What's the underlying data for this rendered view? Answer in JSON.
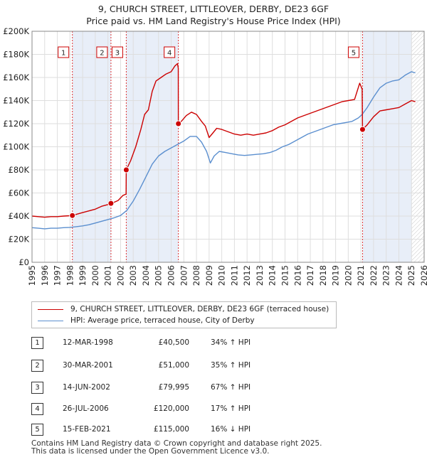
{
  "title_line1": "9, CHURCH STREET, LITTLEOVER, DERBY, DE23 6GF",
  "title_line2": "Price paid vs. HM Land Registry's House Price Index (HPI)",
  "chart_data": {
    "type": "line",
    "x_range": [
      1995,
      2026
    ],
    "ylim": [
      0,
      200000
    ],
    "y_ticks": [
      0,
      20000,
      40000,
      60000,
      80000,
      100000,
      120000,
      140000,
      160000,
      180000,
      200000
    ],
    "y_tick_labels": [
      "£0",
      "£20K",
      "£40K",
      "£60K",
      "£80K",
      "£100K",
      "£120K",
      "£140K",
      "£160K",
      "£180K",
      "£200K"
    ],
    "x_ticks": [
      1995,
      1996,
      1997,
      1998,
      1999,
      2000,
      2001,
      2002,
      2003,
      2004,
      2005,
      2006,
      2007,
      2008,
      2009,
      2010,
      2011,
      2012,
      2013,
      2014,
      2015,
      2016,
      2017,
      2018,
      2019,
      2020,
      2021,
      2022,
      2023,
      2024,
      2025,
      2026
    ],
    "x_tick_labels": [
      "1995",
      "1996",
      "1997",
      "1998",
      "1999",
      "2000",
      "2001",
      "2002",
      "2003",
      "2004",
      "2005",
      "2006",
      "2007",
      "2008",
      "2009",
      "2010",
      "2011",
      "2012",
      "2013",
      "2014",
      "2015",
      "2016",
      "2017",
      "2018",
      "2019",
      "2020",
      "2021",
      "2022",
      "2023",
      "2024",
      "2025",
      "2026"
    ],
    "grid": true,
    "future_shading_from": 2025.0,
    "series": [
      {
        "name": "9, CHURCH STREET, LITTLEOVER, DERBY, DE23 6GF (terraced house)",
        "color": "#cc0000",
        "points": [
          [
            1995.0,
            40000
          ],
          [
            1995.5,
            39500
          ],
          [
            1996.0,
            39000
          ],
          [
            1996.5,
            39500
          ],
          [
            1997.0,
            39500
          ],
          [
            1997.5,
            40000
          ],
          [
            1998.0,
            40300
          ],
          [
            1998.19,
            40500
          ],
          [
            1998.5,
            41500
          ],
          [
            1999.0,
            43000
          ],
          [
            1999.5,
            44500
          ],
          [
            2000.0,
            46000
          ],
          [
            2000.5,
            48500
          ],
          [
            2001.0,
            50000
          ],
          [
            2001.24,
            51000
          ],
          [
            2001.5,
            52000
          ],
          [
            2001.8,
            53500
          ],
          [
            2002.2,
            58000
          ],
          [
            2002.44,
            59000
          ],
          [
            2002.449,
            79995
          ],
          [
            2002.8,
            88000
          ],
          [
            2003.2,
            100000
          ],
          [
            2003.6,
            115000
          ],
          [
            2003.9,
            128000
          ],
          [
            2004.2,
            132000
          ],
          [
            2004.5,
            148000
          ],
          [
            2004.8,
            157000
          ],
          [
            2005.2,
            160000
          ],
          [
            2005.6,
            163000
          ],
          [
            2006.0,
            165000
          ],
          [
            2006.3,
            170000
          ],
          [
            2006.5,
            172000
          ],
          [
            2006.56,
            168000
          ],
          [
            2006.565,
            120000
          ],
          [
            2006.8,
            122000
          ],
          [
            2007.2,
            127000
          ],
          [
            2007.6,
            130000
          ],
          [
            2008.0,
            128000
          ],
          [
            2008.4,
            122000
          ],
          [
            2008.7,
            118000
          ],
          [
            2009.0,
            108000
          ],
          [
            2009.3,
            112000
          ],
          [
            2009.6,
            116000
          ],
          [
            2010.0,
            115000
          ],
          [
            2010.5,
            113000
          ],
          [
            2011.0,
            111000
          ],
          [
            2011.5,
            110000
          ],
          [
            2012.0,
            111000
          ],
          [
            2012.5,
            110000
          ],
          [
            2013.0,
            111000
          ],
          [
            2013.5,
            112000
          ],
          [
            2014.0,
            114000
          ],
          [
            2014.5,
            117000
          ],
          [
            2015.0,
            119000
          ],
          [
            2015.5,
            122000
          ],
          [
            2016.0,
            125000
          ],
          [
            2016.5,
            127000
          ],
          [
            2017.0,
            129000
          ],
          [
            2017.5,
            131000
          ],
          [
            2018.0,
            133000
          ],
          [
            2018.5,
            135000
          ],
          [
            2019.0,
            137000
          ],
          [
            2019.5,
            139000
          ],
          [
            2020.0,
            140000
          ],
          [
            2020.5,
            141000
          ],
          [
            2020.9,
            155000
          ],
          [
            2021.1,
            150000
          ],
          [
            2021.125,
            115000
          ],
          [
            2021.5,
            119000
          ],
          [
            2022.0,
            126000
          ],
          [
            2022.5,
            131000
          ],
          [
            2023.0,
            132000
          ],
          [
            2023.5,
            133000
          ],
          [
            2024.0,
            134000
          ],
          [
            2024.5,
            137000
          ],
          [
            2025.0,
            140000
          ],
          [
            2025.3,
            139000
          ]
        ]
      },
      {
        "name": "HPI: Average price, terraced house, City of Derby",
        "color": "#5b8fcf",
        "points": [
          [
            1995.0,
            30000
          ],
          [
            1995.5,
            29500
          ],
          [
            1996.0,
            29000
          ],
          [
            1996.5,
            29500
          ],
          [
            1997.0,
            29500
          ],
          [
            1997.5,
            30000
          ],
          [
            1998.0,
            30200
          ],
          [
            1998.5,
            30800
          ],
          [
            1999.0,
            31500
          ],
          [
            1999.5,
            32500
          ],
          [
            2000.0,
            34000
          ],
          [
            2000.5,
            35500
          ],
          [
            2001.0,
            37000
          ],
          [
            2001.5,
            38500
          ],
          [
            2002.0,
            40500
          ],
          [
            2002.5,
            45000
          ],
          [
            2003.0,
            53000
          ],
          [
            2003.5,
            63000
          ],
          [
            2004.0,
            74000
          ],
          [
            2004.5,
            85000
          ],
          [
            2005.0,
            92000
          ],
          [
            2005.5,
            96000
          ],
          [
            2006.0,
            99000
          ],
          [
            2006.5,
            102000
          ],
          [
            2007.0,
            105000
          ],
          [
            2007.5,
            109000
          ],
          [
            2008.0,
            109000
          ],
          [
            2008.4,
            104000
          ],
          [
            2008.8,
            96000
          ],
          [
            2009.1,
            86000
          ],
          [
            2009.4,
            92000
          ],
          [
            2009.8,
            96000
          ],
          [
            2010.3,
            95000
          ],
          [
            2010.8,
            94000
          ],
          [
            2011.3,
            93000
          ],
          [
            2011.8,
            92500
          ],
          [
            2012.3,
            93000
          ],
          [
            2012.8,
            93500
          ],
          [
            2013.3,
            94000
          ],
          [
            2013.8,
            95000
          ],
          [
            2014.3,
            97000
          ],
          [
            2014.8,
            100000
          ],
          [
            2015.3,
            102000
          ],
          [
            2015.8,
            105000
          ],
          [
            2016.3,
            108000
          ],
          [
            2016.8,
            111000
          ],
          [
            2017.3,
            113000
          ],
          [
            2017.8,
            115000
          ],
          [
            2018.3,
            117000
          ],
          [
            2018.8,
            119000
          ],
          [
            2019.3,
            120000
          ],
          [
            2019.8,
            121000
          ],
          [
            2020.3,
            122000
          ],
          [
            2020.8,
            125000
          ],
          [
            2021.1,
            128000
          ],
          [
            2021.5,
            134000
          ],
          [
            2022.0,
            143000
          ],
          [
            2022.5,
            151000
          ],
          [
            2023.0,
            155000
          ],
          [
            2023.5,
            157000
          ],
          [
            2024.0,
            158000
          ],
          [
            2024.5,
            162000
          ],
          [
            2025.0,
            165000
          ],
          [
            2025.3,
            164000
          ]
        ]
      }
    ],
    "sales": [
      {
        "n": "1",
        "x": 1998.19,
        "price": 40500
      },
      {
        "n": "2",
        "x": 2001.24,
        "price": 51000
      },
      {
        "n": "3",
        "x": 2002.45,
        "price": 79995
      },
      {
        "n": "4",
        "x": 2006.57,
        "price": 120000
      },
      {
        "n": "5",
        "x": 2021.13,
        "price": 115000
      }
    ]
  },
  "legend": {
    "price_label": "9, CHURCH STREET, LITTLEOVER, DERBY, DE23 6GF (terraced house)",
    "hpi_label": "HPI: Average price, terraced house, City of Derby"
  },
  "sales_table": [
    {
      "num": "1",
      "date": "12-MAR-1998",
      "price": "£40,500",
      "hpi": "34% ↑ HPI"
    },
    {
      "num": "2",
      "date": "30-MAR-2001",
      "price": "£51,000",
      "hpi": "35% ↑ HPI"
    },
    {
      "num": "3",
      "date": "14-JUN-2002",
      "price": "£79,995",
      "hpi": "67% ↑ HPI"
    },
    {
      "num": "4",
      "date": "26-JUL-2006",
      "price": "£120,000",
      "hpi": "17% ↑ HPI"
    },
    {
      "num": "5",
      "date": "15-FEB-2021",
      "price": "£115,000",
      "hpi": "16% ↓ HPI"
    }
  ],
  "footer": {
    "line1": "Contains HM Land Registry data © Crown copyright and database right 2025.",
    "line2": "This data is licensed under the Open Government Licence v3.0."
  }
}
